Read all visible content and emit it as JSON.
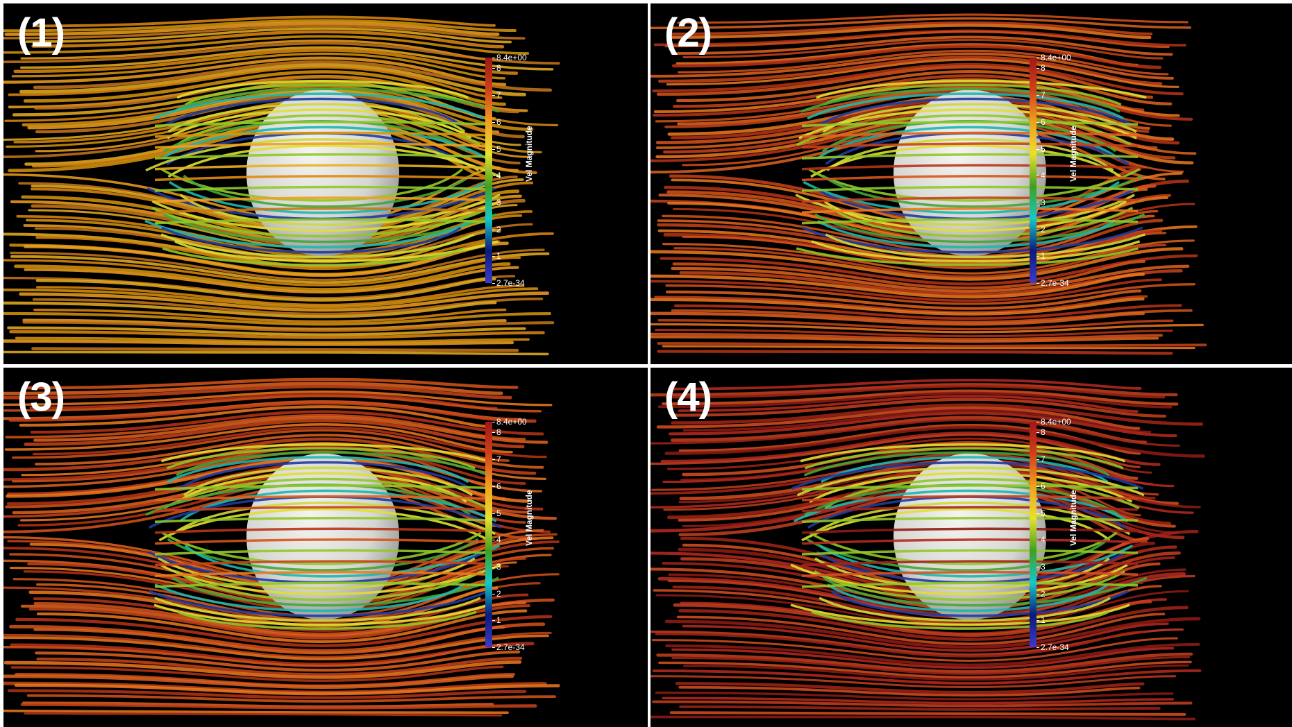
{
  "panels": [
    {
      "label": "(1)",
      "palette": "orange"
    },
    {
      "label": "(2)",
      "palette": "redorange"
    },
    {
      "label": "(3)",
      "palette": "redorange"
    },
    {
      "label": "(4)",
      "palette": "red"
    }
  ],
  "colorbar": {
    "title": "Vel Magnitude",
    "max_label": "8.4e+00",
    "min_label": "2.7e-34",
    "ticks": [
      "8",
      "7",
      "6",
      "5",
      "4",
      "3",
      "2",
      "1"
    ],
    "range": [
      0,
      8.4
    ],
    "colors": [
      "#3b3bc8",
      "#0a1a7a",
      "#17c8c8",
      "#40a020",
      "#e8e030",
      "#f0a020",
      "#d0401a",
      "#a01818"
    ]
  },
  "palettes": {
    "orange": [
      "#e08a10",
      "#d8960c",
      "#f0a020",
      "#c8781a",
      "#e8b020"
    ],
    "redorange": [
      "#d8541a",
      "#e06420",
      "#c8441a",
      "#f07a1e",
      "#b83418"
    ],
    "red": [
      "#b82a1e",
      "#c8401e",
      "#a42418",
      "#d85020",
      "#901c14"
    ],
    "inner": [
      "#e0e030",
      "#90c828",
      "#40a838",
      "#18b8b0",
      "#1e3ca0",
      "#d0d838"
    ]
  }
}
